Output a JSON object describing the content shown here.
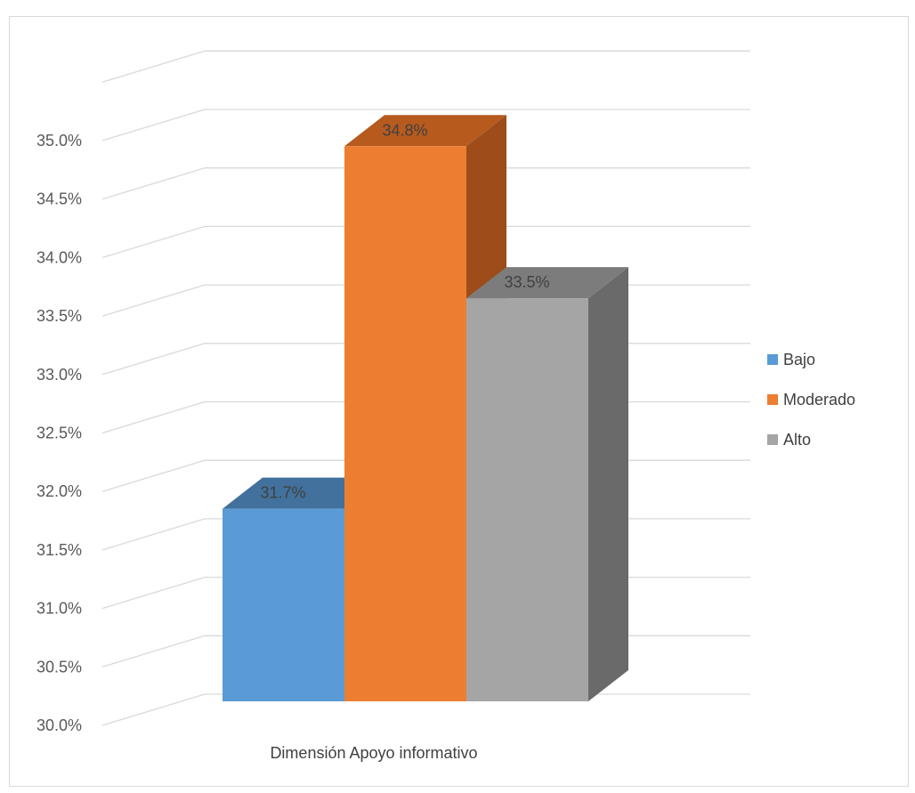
{
  "chart_data": {
    "type": "bar",
    "title": "",
    "xlabel": "",
    "ylabel": "",
    "categories": [
      "Dimensión Apoyo informativo"
    ],
    "series": [
      {
        "name": "Bajo",
        "values": [
          31.7
        ],
        "label": "31.7%",
        "color": "#5b9bd5",
        "top_color": "#41719c",
        "side_color": "#41719c"
      },
      {
        "name": "Moderado",
        "values": [
          34.8
        ],
        "label": "34.8%",
        "color": "#ed7d31",
        "top_color": "#b65a1e",
        "side_color": "#9e4c19"
      },
      {
        "name": "Alto",
        "values": [
          33.5
        ],
        "label": "33.5%",
        "color": "#a5a5a5",
        "top_color": "#7c7c7c",
        "side_color": "#6a6a6a"
      }
    ],
    "ylim": [
      30.0,
      35.0
    ],
    "yticks": [
      "30.0%",
      "30.5%",
      "31.0%",
      "31.5%",
      "32.0%",
      "32.5%",
      "33.0%",
      "33.5%",
      "34.0%",
      "34.5%",
      "35.0%"
    ],
    "grid": true,
    "legend": "right",
    "three_d": true
  }
}
